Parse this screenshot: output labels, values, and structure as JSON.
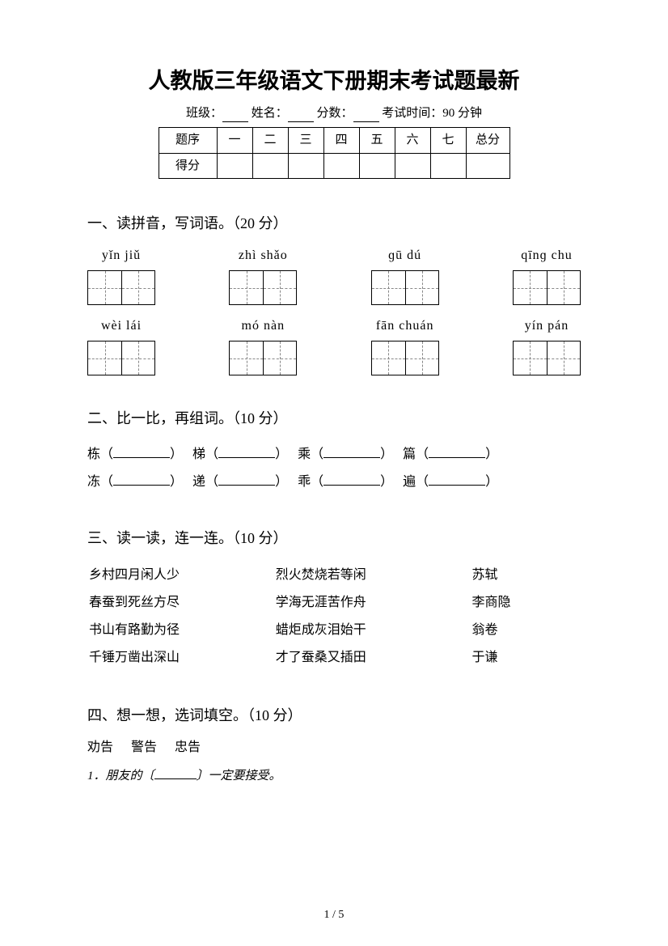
{
  "title": "人教版三年级语文下册期末考试题最新",
  "info": {
    "class_label": "班级：",
    "name_label": "姓名：",
    "score_label": "分数：",
    "time_label": "考试时间：90 分钟"
  },
  "score_table": {
    "row1_label": "题序",
    "cols": [
      "一",
      "二",
      "三",
      "四",
      "五",
      "六",
      "七"
    ],
    "total_label": "总分",
    "row2_label": "得分"
  },
  "s1": {
    "heading": "一、读拼音，写词语。（20 分）",
    "row1": [
      "yǐn  jiǔ",
      "zhì  shǎo",
      "ɡū   dú",
      "qīnɡ   chu"
    ],
    "row2": [
      "wèi   lái",
      "mó  nàn",
      "fān  chuán",
      "yín   pán"
    ]
  },
  "s2": {
    "heading": "二、比一比，再组词。（10 分）",
    "pairs": [
      [
        "栋",
        "梯",
        "乘",
        "篇"
      ],
      [
        "冻",
        "递",
        "乖",
        "遍"
      ]
    ]
  },
  "s3": {
    "heading": "三、读一读，连一连。（10 分）",
    "col1": [
      "乡村四月闲人少",
      "春蚕到死丝方尽",
      "书山有路勤为径",
      "千锤万凿出深山"
    ],
    "col2": [
      "烈火焚烧若等闲",
      "学海无涯苦作舟",
      "蜡炬成灰泪始干",
      "才了蚕桑又插田"
    ],
    "col3": [
      "苏轼",
      "李商隐",
      "翁卷",
      "于谦"
    ]
  },
  "s4": {
    "heading": "四、想一想，选词填空。（10 分）",
    "bank": [
      "劝告",
      "警告",
      "忠告"
    ],
    "item1_prefix": "1．朋友的〔",
    "item1_suffix": "〕一定要接受。"
  },
  "page_num": "1 / 5"
}
